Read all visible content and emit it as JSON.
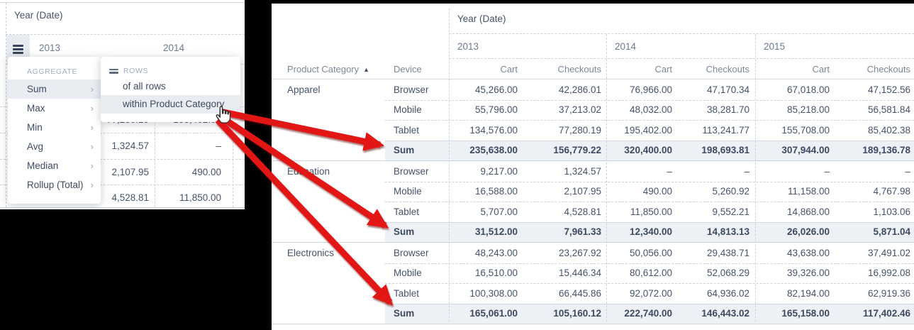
{
  "colors": {
    "canvas_bg": "#000000",
    "accent_red": "#e31313",
    "text_dark": "#47536a",
    "text_gray": "#7d8898",
    "section_label": "#a2adbc",
    "dashed_border": "#c9d4df",
    "solid_border": "#d2dae2",
    "sum_row_bg": "#edf0f4",
    "menu_highlight": "#e9edf2",
    "burger_cell_bg": "#e7ebf0"
  },
  "left_panel": {
    "corner_label": "Year (Date)",
    "year_columns": [
      "2013",
      "2014"
    ],
    "background_rows": [
      [
        "77,280.19",
        "195,402.00"
      ],
      [
        "1,324.57",
        "–"
      ],
      [
        "2,107.95",
        "490.00"
      ],
      [
        "4,528.81",
        "11,850.00"
      ]
    ],
    "menu": {
      "section": "AGGREGATE",
      "items": [
        "Sum",
        "Max",
        "Min",
        "Avg",
        "Median",
        "Rollup (Total)"
      ],
      "active_item": "Sum"
    },
    "submenu": {
      "section": "ROWS",
      "items": [
        "of all rows",
        "within Product Category"
      ],
      "active_item": "within Product Category"
    }
  },
  "pivot": {
    "dimension_label": "Year (Date)",
    "years": [
      "2013",
      "2014",
      "2015"
    ],
    "measures": [
      "Cart",
      "Checkouts"
    ],
    "row_header": "Product Category",
    "sort_indicator": "▲",
    "col_header_device": "Device",
    "sum_row_label": "Sum",
    "groups": [
      {
        "category": "Apparel",
        "rows": [
          {
            "device": "Browser",
            "values": [
              "45,266.00",
              "42,286.01",
              "76,966.00",
              "47,170.34",
              "67,018.00",
              "47,152.56"
            ]
          },
          {
            "device": "Mobile",
            "values": [
              "55,796.00",
              "37,213.02",
              "48,032.00",
              "38,281.70",
              "85,218.00",
              "56,581.84"
            ]
          },
          {
            "device": "Tablet",
            "values": [
              "134,576.00",
              "77,280.19",
              "195,402.00",
              "113,241.77",
              "155,708.00",
              "85,402.38"
            ]
          },
          {
            "device": "Sum",
            "is_sum": true,
            "values": [
              "235,638.00",
              "156,779.22",
              "320,400.00",
              "198,693.81",
              "307,944.00",
              "189,136.78"
            ]
          }
        ]
      },
      {
        "category": "Education",
        "rows": [
          {
            "device": "Browser",
            "values": [
              "9,217.00",
              "1,324.57",
              "–",
              "–",
              "–",
              "–"
            ]
          },
          {
            "device": "Mobile",
            "values": [
              "16,588.00",
              "2,107.95",
              "490.00",
              "5,260.92",
              "11,158.00",
              "4,767.98"
            ]
          },
          {
            "device": "Tablet",
            "values": [
              "5,707.00",
              "4,528.81",
              "11,850.00",
              "9,552.21",
              "14,868.00",
              "1,103.06"
            ]
          },
          {
            "device": "Sum",
            "is_sum": true,
            "values": [
              "31,512.00",
              "7,961.33",
              "12,340.00",
              "14,813.13",
              "26,026.00",
              "5,871.04"
            ]
          }
        ]
      },
      {
        "category": "Electronics",
        "rows": [
          {
            "device": "Browser",
            "values": [
              "48,243.00",
              "23,267.92",
              "50,056.00",
              "29,438.71",
              "43,638.00",
              "37,491.02"
            ]
          },
          {
            "device": "Mobile",
            "values": [
              "16,510.00",
              "15,446.34",
              "80,612.00",
              "52,068.29",
              "39,326.00",
              "16,992.08"
            ]
          },
          {
            "device": "Tablet",
            "values": [
              "100,308.00",
              "66,445.86",
              "92,072.00",
              "64,936.02",
              "82,194.00",
              "62,919.36"
            ]
          },
          {
            "device": "Sum",
            "is_sum": true,
            "values": [
              "165,061.00",
              "105,160.12",
              "222,740.00",
              "146,443.02",
              "165,158.00",
              "117,402.46"
            ]
          }
        ]
      }
    ]
  }
}
